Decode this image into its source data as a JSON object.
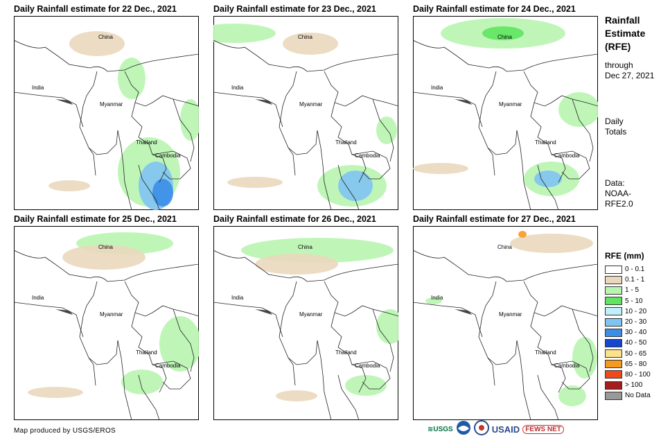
{
  "panels": [
    {
      "title": "Daily Rainfall estimate for 22 Dec., 2021"
    },
    {
      "title": "Daily Rainfall estimate for 23 Dec., 2021"
    },
    {
      "title": "Daily Rainfall estimate for 24 Dec., 2021"
    },
    {
      "title": "Daily Rainfall estimate for 25 Dec., 2021"
    },
    {
      "title": "Daily Rainfall estimate for 26 Dec., 2021"
    },
    {
      "title": "Daily Rainfall estimate for 27 Dec., 2021"
    }
  ],
  "map_labels": {
    "china": "China",
    "india": "India",
    "myanmar": "Myanmar",
    "thailand": "Thailand",
    "cambodia": "Cambodia"
  },
  "sidebar": {
    "title_1": "Rainfall",
    "title_2": "Estimate",
    "title_3": "(RFE)",
    "through_1": "through",
    "through_2": "Dec 27, 2021",
    "daily_1": "Daily",
    "daily_2": "Totals",
    "data_1": "Data:",
    "data_2": "NOAA-",
    "data_3": "RFE2.0"
  },
  "legend": {
    "title": "RFE (mm)",
    "items": [
      {
        "label": "0 - 0.1",
        "color": "#ffffff"
      },
      {
        "label": "0.1 - 1",
        "color": "#ead8bc"
      },
      {
        "label": "1 - 5",
        "color": "#b8f5b0"
      },
      {
        "label": "5 - 10",
        "color": "#5fe55f"
      },
      {
        "label": "10 - 20",
        "color": "#bff0fb"
      },
      {
        "label": "20 - 30",
        "color": "#7fc4f2"
      },
      {
        "label": "30 - 40",
        "color": "#3b8ee8"
      },
      {
        "label": "40 - 50",
        "color": "#1547d1"
      },
      {
        "label": "50 - 65",
        "color": "#fbe38a"
      },
      {
        "label": "65 - 80",
        "color": "#f59a1f"
      },
      {
        "label": "80 - 100",
        "color": "#ee4a1c"
      },
      {
        "label": "> 100",
        "color": "#a51d1d"
      },
      {
        "label": "No Data",
        "color": "#999999"
      }
    ]
  },
  "credit": "Map produced by USGS/EROS",
  "logos": {
    "usgs": "USGS",
    "usaid": "USAID",
    "fewsnet": "FEWS NET"
  }
}
